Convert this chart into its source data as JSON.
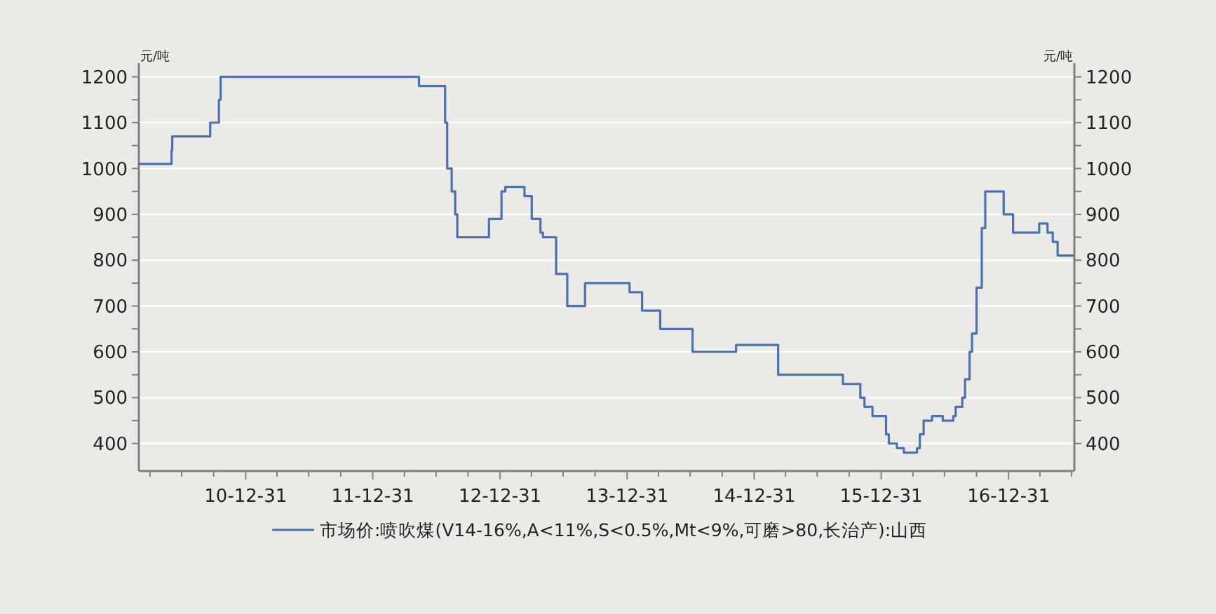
{
  "chart_data": {
    "type": "step",
    "ylabel": "元/吨",
    "y2label": "元/吨",
    "legend": "bottom",
    "grid": "y",
    "marker": "none",
    "line_style": "solid",
    "xlim": [
      "2010-02-27",
      "2017-07-08"
    ],
    "xticks": [
      {
        "value": "2010-03-31",
        "label": null
      },
      {
        "value": "2010-06-30",
        "label": null
      },
      {
        "value": "2010-09-30",
        "label": null
      },
      {
        "value": "2010-12-31",
        "label": "10-12-31"
      },
      {
        "value": "2011-03-31",
        "label": null
      },
      {
        "value": "2011-06-30",
        "label": null
      },
      {
        "value": "2011-09-30",
        "label": null
      },
      {
        "value": "2011-12-31",
        "label": "11-12-31"
      },
      {
        "value": "2012-03-31",
        "label": null
      },
      {
        "value": "2012-06-30",
        "label": null
      },
      {
        "value": "2012-09-30",
        "label": null
      },
      {
        "value": "2012-12-31",
        "label": "12-12-31"
      },
      {
        "value": "2013-03-31",
        "label": null
      },
      {
        "value": "2013-06-30",
        "label": null
      },
      {
        "value": "2013-09-30",
        "label": null
      },
      {
        "value": "2013-12-31",
        "label": "13-12-31"
      },
      {
        "value": "2014-03-31",
        "label": null
      },
      {
        "value": "2014-06-30",
        "label": null
      },
      {
        "value": "2014-09-30",
        "label": null
      },
      {
        "value": "2014-12-31",
        "label": "14-12-31"
      },
      {
        "value": "2015-03-31",
        "label": null
      },
      {
        "value": "2015-06-30",
        "label": null
      },
      {
        "value": "2015-09-30",
        "label": null
      },
      {
        "value": "2015-12-31",
        "label": "15-12-31"
      },
      {
        "value": "2016-03-31",
        "label": null
      },
      {
        "value": "2016-06-30",
        "label": null
      },
      {
        "value": "2016-09-30",
        "label": null
      },
      {
        "value": "2016-12-31",
        "label": "16-12-31"
      },
      {
        "value": "2017-03-31",
        "label": null
      },
      {
        "value": "2017-06-30",
        "label": null
      }
    ],
    "ylim": [
      340,
      1230
    ],
    "yticks": [
      400,
      {
        "value": 450,
        "label": null
      },
      500,
      {
        "value": 550,
        "label": null
      },
      600,
      {
        "value": 650,
        "label": null
      },
      700,
      {
        "value": 750,
        "label": null
      },
      800,
      {
        "value": 850,
        "label": null
      },
      900,
      {
        "value": 950,
        "label": null
      },
      1000,
      {
        "value": 1050,
        "label": null
      },
      1100,
      {
        "value": 1150,
        "label": null
      },
      1200
    ],
    "y2lim": [
      340,
      1230
    ],
    "y2ticks": [
      400,
      {
        "value": 450,
        "label": null
      },
      500,
      {
        "value": 550,
        "label": null
      },
      600,
      {
        "value": 650,
        "label": null
      },
      700,
      {
        "value": 750,
        "label": null
      },
      800,
      {
        "value": 850,
        "label": null
      },
      900,
      {
        "value": 950,
        "label": null
      },
      1000,
      {
        "value": 1050,
        "label": null
      },
      1100,
      {
        "value": 1150,
        "label": null
      },
      1200
    ],
    "x": [
      "2010-02-27",
      "2010-06-01",
      "2010-06-03",
      "2010-09-20",
      "2010-10-15",
      "2010-10-20",
      "2012-05-12",
      "2012-07-26",
      "2012-08-01",
      "2012-08-14",
      "2012-08-24",
      "2012-08-30",
      "2012-11-29",
      "2013-01-04",
      "2013-01-15",
      "2013-03-11",
      "2013-04-01",
      "2013-04-26",
      "2013-05-03",
      "2013-06-10",
      "2013-07-12",
      "2013-09-01",
      "2014-01-07",
      "2014-02-12",
      "2014-04-05",
      "2014-07-07",
      "2014-11-09",
      "2015-03-10",
      "2015-09-12",
      "2015-11-01",
      "2015-11-13",
      "2015-12-06",
      "2016-01-14",
      "2016-01-22",
      "2016-02-14",
      "2016-03-05",
      "2016-04-12",
      "2016-04-20",
      "2016-05-01",
      "2016-05-25",
      "2016-06-25",
      "2016-07-25",
      "2016-08-01",
      "2016-08-20",
      "2016-08-28",
      "2016-09-10",
      "2016-09-17",
      "2016-09-30",
      "2016-10-15",
      "2016-10-25",
      "2016-12-17",
      "2017-01-13",
      "2017-03-29",
      "2017-04-22",
      "2017-05-07",
      "2017-05-21",
      "2017-07-08"
    ],
    "series": [
      {
        "name": "市场价:喷吹煤(V14-16%,A<11%,S<0.5%,Mt<9%,可磨>80,长治产):山西",
        "color": "#4a72b0",
        "values": [
          1010,
          1040,
          1070,
          1100,
          1150,
          1200,
          1180,
          1100,
          1000,
          950,
          900,
          850,
          890,
          950,
          960,
          940,
          890,
          860,
          850,
          770,
          700,
          750,
          730,
          690,
          650,
          600,
          615,
          550,
          530,
          500,
          480,
          460,
          420,
          400,
          390,
          380,
          390,
          420,
          450,
          460,
          450,
          460,
          480,
          500,
          540,
          600,
          640,
          740,
          870,
          950,
          900,
          860,
          880,
          860,
          840,
          810,
          810
        ]
      }
    ]
  }
}
